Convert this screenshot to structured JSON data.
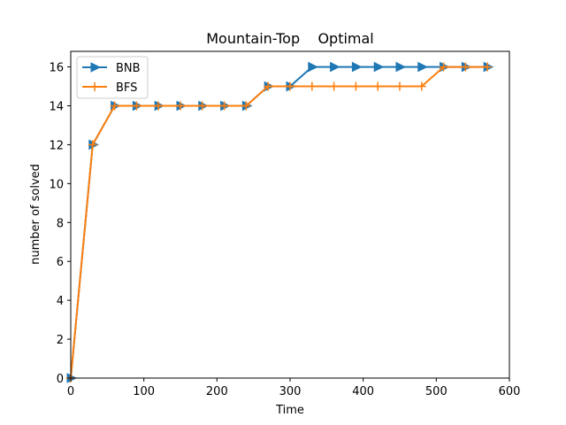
{
  "chart_data": {
    "type": "line",
    "title": "Mountain-Top    Optimal",
    "xlabel": "Time",
    "ylabel": "number of solved",
    "xlim": [
      0,
      600
    ],
    "ylim": [
      0,
      16.8
    ],
    "xticks": [
      0,
      100,
      200,
      300,
      400,
      500,
      600
    ],
    "yticks": [
      0,
      2,
      4,
      6,
      8,
      10,
      12,
      14,
      16
    ],
    "grid": false,
    "legend_position": "upper-left",
    "series": [
      {
        "name": "BNB",
        "color": "#1f77b4",
        "marker": "triangle-right",
        "x": [
          0,
          30,
          60,
          90,
          120,
          150,
          180,
          210,
          240,
          270,
          300,
          330,
          360,
          390,
          420,
          450,
          480,
          510,
          540,
          570
        ],
        "y": [
          0,
          12,
          14,
          14,
          14,
          14,
          14,
          14,
          14,
          15,
          15,
          16,
          16,
          16,
          16,
          16,
          16,
          16,
          16,
          16
        ]
      },
      {
        "name": "BFS",
        "color": "#ff7f0e",
        "marker": "plus",
        "x": [
          0,
          30,
          60,
          90,
          120,
          150,
          180,
          210,
          240,
          270,
          300,
          330,
          360,
          390,
          420,
          450,
          480,
          510,
          540,
          570
        ],
        "y": [
          0,
          12,
          14,
          14,
          14,
          14,
          14,
          14,
          14,
          15,
          15,
          15,
          15,
          15,
          15,
          15,
          15,
          16,
          16,
          16
        ]
      }
    ]
  }
}
